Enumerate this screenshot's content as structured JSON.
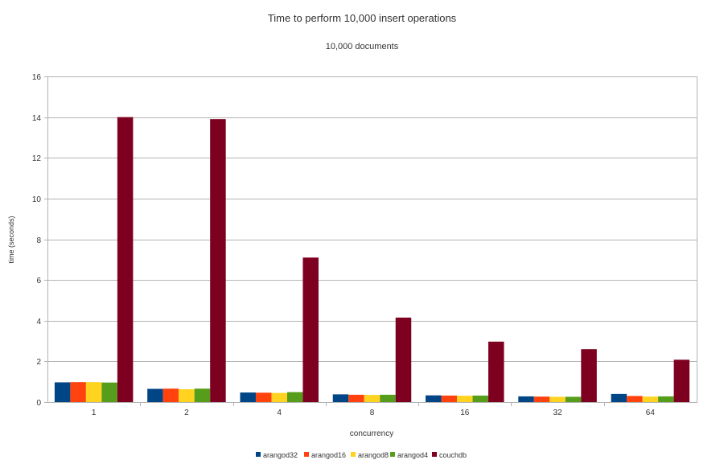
{
  "chart_data": {
    "type": "bar",
    "title": "Time to perform 10,000 insert operations",
    "subtitle": "10,000 documents",
    "xlabel": "concurrency",
    "ylabel": "time (seconds)",
    "ylim": [
      0,
      16
    ],
    "yticks": [
      0,
      2,
      4,
      6,
      8,
      10,
      12,
      14,
      16
    ],
    "grid": true,
    "legend_position": "bottom",
    "categories": [
      "1",
      "2",
      "4",
      "8",
      "16",
      "32",
      "64"
    ],
    "series": [
      {
        "name": "arangod32",
        "color": "#004586",
        "values": [
          0.97,
          0.65,
          0.47,
          0.38,
          0.33,
          0.28,
          0.4
        ]
      },
      {
        "name": "arangod16",
        "color": "#ff420e",
        "values": [
          0.98,
          0.66,
          0.46,
          0.36,
          0.32,
          0.27,
          0.3
        ]
      },
      {
        "name": "arangod8",
        "color": "#ffd320",
        "values": [
          0.98,
          0.63,
          0.45,
          0.35,
          0.31,
          0.26,
          0.27
        ]
      },
      {
        "name": "arangod4",
        "color": "#579d1c",
        "values": [
          0.96,
          0.66,
          0.49,
          0.36,
          0.32,
          0.26,
          0.28
        ]
      },
      {
        "name": "couchdb",
        "color": "#7e0021",
        "values": [
          14.0,
          13.9,
          7.1,
          4.15,
          2.97,
          2.6,
          2.08
        ]
      }
    ]
  }
}
